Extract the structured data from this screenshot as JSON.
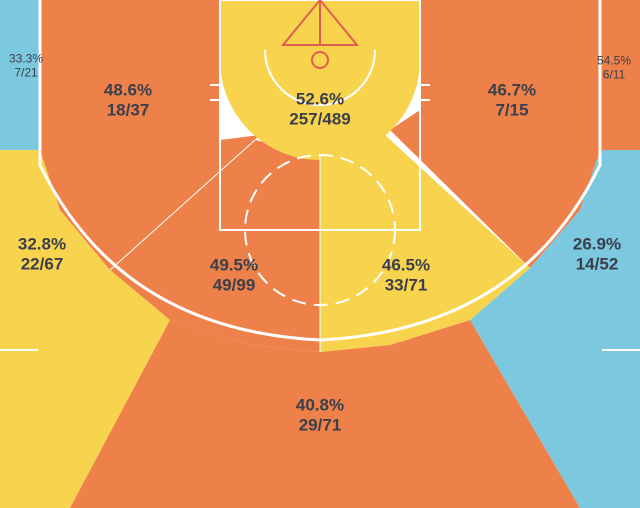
{
  "colors": {
    "orange": "#ee8149",
    "yellow": "#f8d44e",
    "blue": "#7bc8df",
    "line": "#ffffff",
    "rim": "#e25c4f",
    "text": "#3a3f4b"
  },
  "zones": [
    {
      "id": "corner3-left",
      "pct": "33.3%",
      "frac": "7/21",
      "level": "blue"
    },
    {
      "id": "mid-left-baseline",
      "pct": "48.6%",
      "frac": "18/37",
      "level": "orange"
    },
    {
      "id": "restricted-area",
      "pct": "52.6%",
      "frac": "257/489",
      "level": "yellow"
    },
    {
      "id": "mid-right-baseline",
      "pct": "46.7%",
      "frac": "7/15",
      "level": "orange"
    },
    {
      "id": "corner3-right",
      "pct": "54.5%",
      "frac": "6/11",
      "level": "orange"
    },
    {
      "id": "wing3-left",
      "pct": "32.8%",
      "frac": "22/67",
      "level": "yellow"
    },
    {
      "id": "paint-left",
      "pct": "49.5%",
      "frac": "49/99",
      "level": "orange"
    },
    {
      "id": "paint-right",
      "pct": "46.5%",
      "frac": "33/71",
      "level": "yellow"
    },
    {
      "id": "wing3-right",
      "pct": "26.9%",
      "frac": "14/52",
      "level": "blue"
    },
    {
      "id": "top3",
      "pct": "40.8%",
      "frac": "29/71",
      "level": "orange"
    }
  ]
}
